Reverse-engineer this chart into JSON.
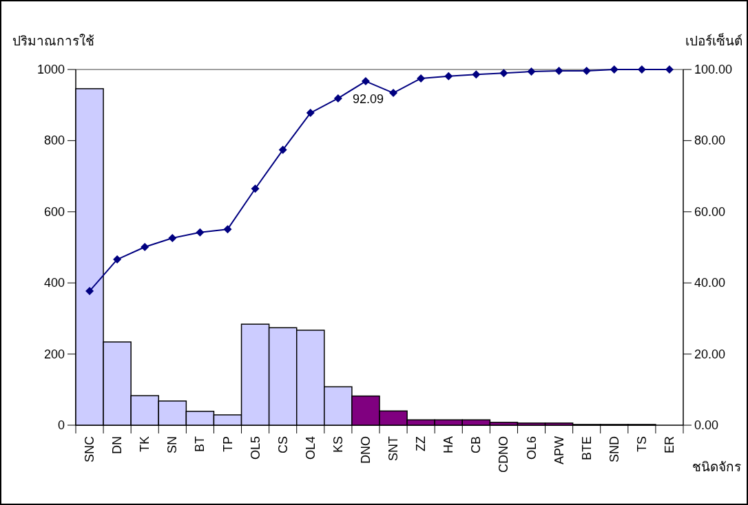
{
  "chart_data": {
    "type": "bar",
    "ylabel": "ปริมาณการใช้",
    "y2label": "เปอร์เซ็นต์",
    "xlabel": "ชนิดจักร",
    "categories": [
      "SNC",
      "DN",
      "TK",
      "SN",
      "BT",
      "TP",
      "OL5",
      "CS",
      "OL4",
      "KS",
      "DNO",
      "SNT",
      "ZZ",
      "HA",
      "CB",
      "CDNO",
      "OL6",
      "APW",
      "BTE",
      "SND",
      "TS",
      "ER"
    ],
    "series": [
      {
        "values": [
          946,
          234,
          83,
          68,
          39,
          29,
          284,
          274,
          267,
          108,
          82,
          40,
          15,
          15,
          15,
          8,
          6,
          6,
          2,
          2,
          2,
          0
        ],
        "colors": [
          "#ccccff",
          "#ccccff",
          "#ccccff",
          "#ccccff",
          "#ccccff",
          "#ccccff",
          "#ccccff",
          "#ccccff",
          "#ccccff",
          "#ccccff",
          "#800080",
          "#800080",
          "#800080",
          "#800080",
          "#800080",
          "#800080",
          "#800080",
          "#800080",
          "#800080",
          "#800080",
          "#800080",
          "#800080"
        ]
      },
      {
        "type": "line",
        "axis": "y2",
        "color": "#000080",
        "marker": "diamond",
        "values": [
          37.7,
          46.6,
          50.1,
          52.6,
          54.2,
          55.1,
          66.5,
          77.4,
          87.8,
          91.9,
          96.7,
          93.4,
          97.5,
          98.1,
          98.6,
          99.0,
          99.4,
          99.6,
          99.6,
          100,
          100,
          100
        ]
      }
    ],
    "ylim": [
      0,
      1000
    ],
    "yticks": [
      0,
      200,
      400,
      600,
      800,
      1000
    ],
    "y2lim": [
      0,
      100
    ],
    "y2ticks": [
      {
        "value": 0,
        "label": "0.00"
      },
      {
        "value": 20,
        "label": "20.00"
      },
      {
        "value": 40,
        "label": "40.00"
      },
      {
        "value": 60,
        "label": "60.00"
      },
      {
        "value": 80,
        "label": "80.00"
      },
      {
        "value": 100,
        "label": "100.00"
      }
    ],
    "annotations": [
      "92.09"
    ]
  }
}
